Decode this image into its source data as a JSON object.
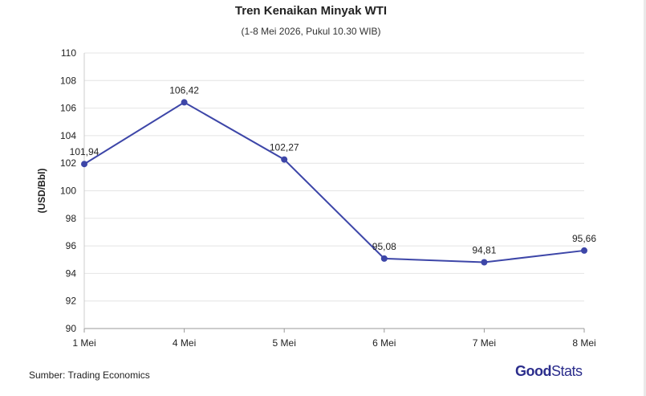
{
  "chart_data": {
    "type": "line",
    "title": "Tren Kenaikan Minyak WTI",
    "subtitle": "(1-8 Mei 2026, Pukul 10.30 WIB)",
    "xlabel": "",
    "ylabel": "(USD/Bbl)",
    "categories": [
      "1 Mei",
      "4 Mei",
      "5 Mei",
      "6 Mei",
      "7 Mei",
      "8 Mei"
    ],
    "series": [
      {
        "values": [
          101.94,
          106.42,
          102.27,
          95.08,
          94.81,
          95.66
        ],
        "labels": [
          "101,94",
          "106,42",
          "102,27",
          "95,08",
          "94,81",
          "95,66"
        ],
        "color": "#3d46a8"
      }
    ],
    "ylim": [
      90,
      110
    ],
    "yticks": [
      90,
      92,
      94,
      96,
      98,
      100,
      102,
      104,
      106,
      108,
      110
    ],
    "grid": true
  },
  "footer": {
    "source": "Sumber: Trading Economics",
    "logo_good": "Good",
    "logo_stats": "Stats"
  }
}
